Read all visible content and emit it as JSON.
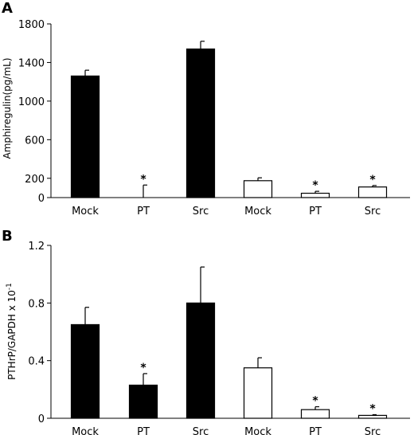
{
  "chart_data": [
    {
      "panel": "A",
      "type": "bar",
      "ylabel": "Amphiregulin(pg/mL)",
      "ylim": [
        0,
        1800
      ],
      "yticks": [
        0,
        200,
        600,
        1000,
        1400,
        1800
      ],
      "categories": [
        "Mock",
        "PT",
        "Src",
        "Mock",
        "PT",
        "Src"
      ],
      "values": [
        1260,
        0,
        1540,
        175,
        45,
        110
      ],
      "errors": [
        60,
        130,
        80,
        30,
        20,
        15
      ],
      "fill_colors": [
        "#000000",
        "#000000",
        "#000000",
        "#ffffff",
        "#ffffff",
        "#ffffff"
      ],
      "significance": [
        "",
        "*",
        "",
        "",
        "*",
        "*"
      ]
    },
    {
      "panel": "B",
      "type": "bar",
      "ylabel": "PTHrP/GAPDH x 10",
      "ylabel_sup": "-1",
      "ylim": [
        0,
        1.2
      ],
      "yticks": [
        0,
        0.4,
        0.8,
        1.2
      ],
      "categories": [
        "Mock",
        "PT",
        "Src",
        "Mock",
        "PT",
        "Src"
      ],
      "values": [
        0.65,
        0.23,
        0.8,
        0.35,
        0.06,
        0.02
      ],
      "errors": [
        0.12,
        0.08,
        0.25,
        0.07,
        0.02,
        0.005
      ],
      "fill_colors": [
        "#000000",
        "#000000",
        "#000000",
        "#ffffff",
        "#ffffff",
        "#ffffff"
      ],
      "significance": [
        "",
        "*",
        "",
        "",
        "*",
        "*"
      ]
    }
  ]
}
